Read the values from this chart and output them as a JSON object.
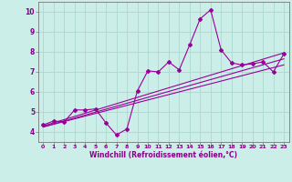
{
  "xlabel": "Windchill (Refroidissement éolien,°C)",
  "bg_color": "#cceee8",
  "line_color": "#990099",
  "xlim": [
    -0.5,
    23.5
  ],
  "ylim": [
    3.5,
    10.5
  ],
  "yticks": [
    4,
    5,
    6,
    7,
    8,
    9,
    10
  ],
  "xticks": [
    0,
    1,
    2,
    3,
    4,
    5,
    6,
    7,
    8,
    9,
    10,
    11,
    12,
    13,
    14,
    15,
    16,
    17,
    18,
    19,
    20,
    21,
    22,
    23
  ],
  "main_line_x": [
    0,
    1,
    2,
    3,
    4,
    5,
    6,
    7,
    8,
    9,
    10,
    11,
    12,
    13,
    14,
    15,
    16,
    17,
    18,
    19,
    20,
    21,
    22,
    23
  ],
  "main_line_y": [
    4.35,
    4.55,
    4.5,
    5.1,
    5.1,
    5.15,
    4.45,
    3.85,
    4.15,
    6.05,
    7.05,
    7.0,
    7.5,
    7.1,
    8.35,
    9.65,
    10.1,
    8.1,
    7.45,
    7.35,
    7.4,
    7.5,
    7.0,
    7.9
  ],
  "reg_line1_x": [
    0,
    23
  ],
  "reg_line1_y": [
    4.25,
    7.35
  ],
  "reg_line2_x": [
    0,
    23
  ],
  "reg_line2_y": [
    4.25,
    7.65
  ],
  "reg_line3_x": [
    0,
    23
  ],
  "reg_line3_y": [
    4.3,
    7.95
  ],
  "grid_color": "#aad8d0",
  "tick_color": "#880088",
  "spine_color": "#777777"
}
